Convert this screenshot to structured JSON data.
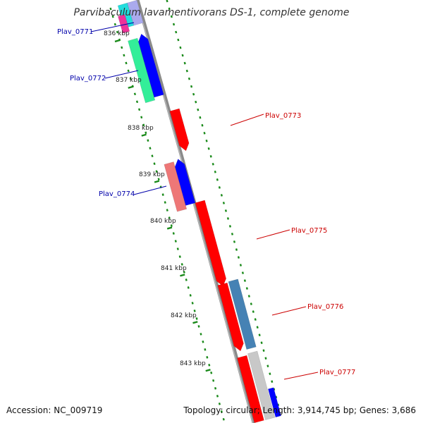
{
  "title": "Parvibaculum lavamentivorans DS-1, complete genome",
  "footer": {
    "accession": "Accession: NC_009719",
    "topology": "Topology: circular; Length: 3,914,745 bp; Genes: 3,686"
  },
  "colors": {
    "backbone": "#8a8a8a",
    "tick_dots": "#1a8a1a",
    "label_forward": "#cc0000",
    "label_reverse": "#0000aa",
    "gene_red": "#ff0000",
    "gene_blue": "#0000ff",
    "gene_green": "#33ee99",
    "gene_salmon": "#ee7777",
    "gene_steelblue": "#4682b4",
    "gene_grey": "#c8c8c8",
    "gene_magenta": "#ee3399",
    "gene_cyan": "#22dddd",
    "gene_lavender": "#aaaaee"
  },
  "kbp_labels": [
    "836 kbp",
    "837 kbp",
    "838 kbp",
    "839 kbp",
    "840 kbp",
    "841 kbp",
    "842 kbp",
    "843 kbp"
  ],
  "gene_labels": [
    {
      "text": "Plav_0771",
      "strand": "reverse"
    },
    {
      "text": "Plav_0772",
      "strand": "reverse"
    },
    {
      "text": "Plav_0773",
      "strand": "forward"
    },
    {
      "text": "Plav_0774",
      "strand": "reverse"
    },
    {
      "text": "Plav_0775",
      "strand": "forward"
    },
    {
      "text": "Plav_0776",
      "strand": "forward"
    },
    {
      "text": "Plav_0777",
      "strand": "forward"
    }
  ]
}
